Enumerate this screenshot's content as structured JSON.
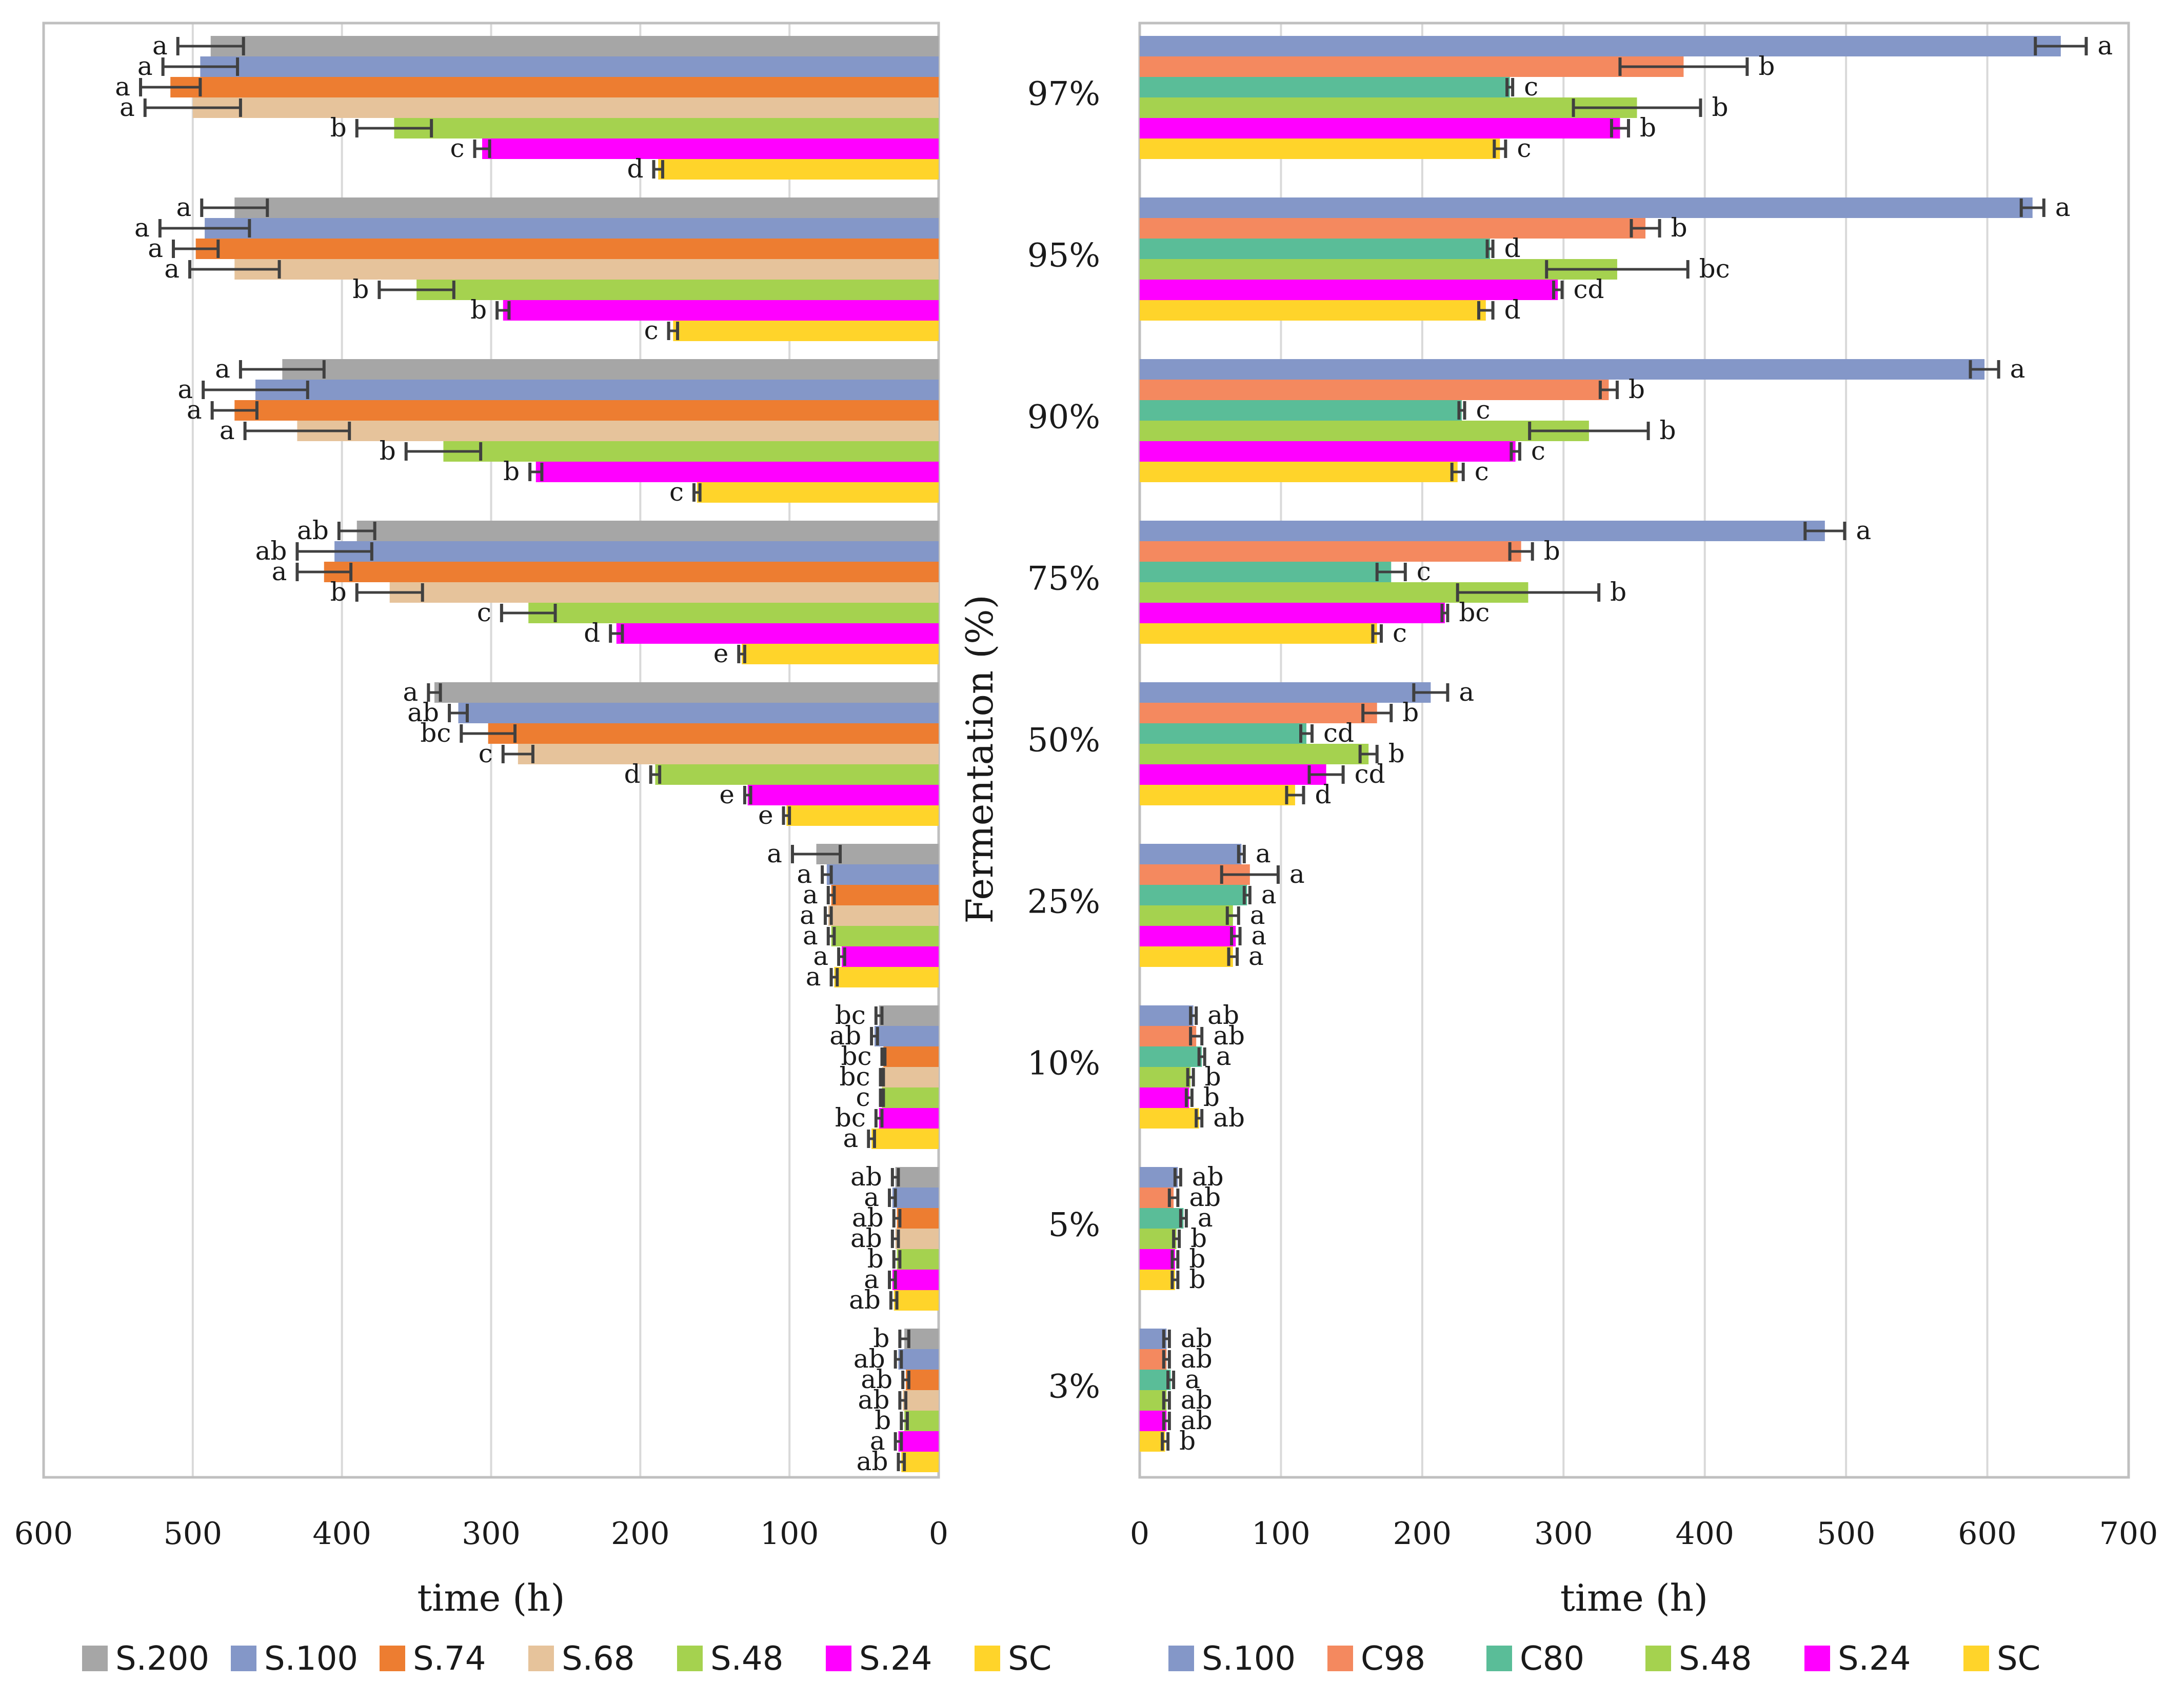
{
  "axis_title_shared": "Fermentation (%)",
  "chart_data": [
    {
      "type": "bar",
      "orientation": "horizontal-reversed",
      "xlabel": "time (h)",
      "xlim": [
        0,
        600
      ],
      "xticks": [
        600,
        500,
        400,
        300,
        200,
        100,
        0
      ],
      "grid": true,
      "legend_position": "bottom",
      "categories": [
        "97%",
        "95%",
        "90%",
        "75%",
        "50%",
        "25%",
        "10%",
        "5%",
        "3%"
      ],
      "series": [
        {
          "name": "S.200",
          "color": "#a6a6a6",
          "values": [
            488,
            472,
            440,
            390,
            338,
            82,
            40,
            29,
            23
          ],
          "errors": [
            22,
            22,
            28,
            12,
            4,
            16,
            2,
            2,
            3
          ],
          "letters": [
            "a",
            "a",
            "a",
            "ab",
            "a",
            "a",
            "bc",
            "ab",
            "b"
          ]
        },
        {
          "name": "S.100",
          "color": "#8497c8",
          "values": [
            495,
            492,
            458,
            405,
            322,
            75,
            43,
            31,
            27
          ],
          "errors": [
            25,
            30,
            35,
            25,
            6,
            3,
            2,
            2,
            2
          ],
          "letters": [
            "a",
            "a",
            "a",
            "ab",
            "ab",
            "a",
            "ab",
            "a",
            "ab"
          ]
        },
        {
          "name": "S.74",
          "color": "#ed7d31",
          "values": [
            515,
            498,
            472,
            412,
            302,
            72,
            37,
            28,
            22
          ],
          "errors": [
            20,
            15,
            15,
            18,
            18,
            2,
            1,
            2,
            2
          ],
          "letters": [
            "a",
            "a",
            "a",
            "a",
            "bc",
            "a",
            "bc",
            "ab",
            "ab"
          ]
        },
        {
          "name": "S.68",
          "color": "#e6c39b",
          "values": [
            500,
            472,
            430,
            368,
            282,
            74,
            38,
            29,
            24
          ],
          "errors": [
            32,
            30,
            35,
            22,
            10,
            2,
            1,
            2,
            2
          ],
          "letters": [
            "a",
            "a",
            "a",
            "b",
            "c",
            "a",
            "bc",
            "ab",
            "ab"
          ]
        },
        {
          "name": "S.48",
          "color": "#a5d24f",
          "values": [
            365,
            350,
            332,
            275,
            190,
            72,
            38,
            28,
            23
          ],
          "errors": [
            25,
            25,
            25,
            18,
            3,
            2,
            1,
            2,
            2
          ],
          "letters": [
            "b",
            "b",
            "b",
            "c",
            "d",
            "a",
            "c",
            "b",
            "b"
          ]
        },
        {
          "name": "S.24",
          "color": "#ff00ff",
          "values": [
            306,
            292,
            270,
            216,
            128,
            65,
            40,
            31,
            27
          ],
          "errors": [
            5,
            4,
            4,
            4,
            2,
            2,
            2,
            2,
            2
          ],
          "letters": [
            "c",
            "b",
            "b",
            "d",
            "e",
            "a",
            "bc",
            "a",
            "a"
          ]
        },
        {
          "name": "SC",
          "color": "#ffd42a",
          "values": [
            188,
            178,
            162,
            132,
            102,
            70,
            45,
            30,
            25
          ],
          "errors": [
            3,
            3,
            2,
            2,
            2,
            2,
            2,
            2,
            2
          ],
          "letters": [
            "d",
            "c",
            "c",
            "e",
            "e",
            "a",
            "a",
            "ab",
            "ab"
          ]
        }
      ]
    },
    {
      "type": "bar",
      "orientation": "horizontal",
      "xlabel": "time (h)",
      "xlim": [
        0,
        700
      ],
      "xticks": [
        0,
        100,
        200,
        300,
        400,
        500,
        600,
        700
      ],
      "grid": true,
      "legend_position": "bottom",
      "categories": [
        "97%",
        "95%",
        "90%",
        "75%",
        "50%",
        "25%",
        "10%",
        "5%",
        "3%"
      ],
      "series": [
        {
          "name": "S.100",
          "color": "#8497c8",
          "values": [
            652,
            632,
            598,
            485,
            206,
            72,
            38,
            27,
            19
          ],
          "errors": [
            18,
            8,
            10,
            14,
            12,
            2,
            2,
            2,
            2
          ],
          "letters": [
            "a",
            "a",
            "a",
            "a",
            "a",
            "a",
            "ab",
            "ab",
            "ab"
          ]
        },
        {
          "name": "C98",
          "color": "#f4895f",
          "values": [
            385,
            358,
            332,
            270,
            168,
            78,
            40,
            24,
            19
          ],
          "errors": [
            45,
            10,
            6,
            8,
            10,
            20,
            4,
            3,
            2
          ],
          "letters": [
            "b",
            "b",
            "b",
            "b",
            "b",
            "a",
            "ab",
            "ab",
            "ab"
          ]
        },
        {
          "name": "C80",
          "color": "#5abd98",
          "values": [
            262,
            248,
            228,
            178,
            118,
            76,
            44,
            31,
            22
          ],
          "errors": [
            2,
            2,
            2,
            10,
            4,
            2,
            2,
            2,
            2
          ],
          "letters": [
            "c",
            "d",
            "c",
            "c",
            "cd",
            "a",
            "a",
            "a",
            "a"
          ]
        },
        {
          "name": "S.48",
          "color": "#a5d24f",
          "values": [
            352,
            338,
            318,
            275,
            162,
            66,
            36,
            26,
            19
          ],
          "errors": [
            45,
            50,
            42,
            50,
            6,
            4,
            2,
            2,
            2
          ],
          "letters": [
            "b",
            "bc",
            "b",
            "b",
            "b",
            "a",
            "b",
            "b",
            "ab"
          ]
        },
        {
          "name": "S.24",
          "color": "#ff00ff",
          "values": [
            340,
            296,
            266,
            216,
            132,
            68,
            35,
            25,
            19
          ],
          "errors": [
            6,
            3,
            3,
            2,
            12,
            3,
            2,
            2,
            2
          ],
          "letters": [
            "b",
            "cd",
            "c",
            "bc",
            "cd",
            "a",
            "b",
            "b",
            "ab"
          ]
        },
        {
          "name": "SC",
          "color": "#ffd42a",
          "values": [
            255,
            245,
            225,
            168,
            110,
            66,
            42,
            25,
            18
          ],
          "errors": [
            4,
            5,
            4,
            3,
            6,
            3,
            2,
            2,
            2
          ],
          "letters": [
            "c",
            "d",
            "c",
            "c",
            "d",
            "a",
            "ab",
            "b",
            "b"
          ]
        }
      ]
    }
  ]
}
